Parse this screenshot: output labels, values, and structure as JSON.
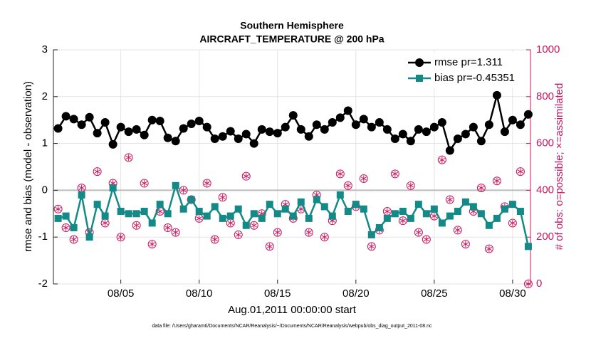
{
  "chart_data": {
    "type": "line",
    "title": "Southern Hemisphere",
    "subtitle": "AIRCRAFT_TEMPERATURE @ 200 hPa",
    "x_label": "Aug.01,2011 00:00:00 start",
    "y_label": "rmse and bias (model - observation)",
    "y2_label": "# of obs: o=possible; ×=assimilated",
    "footnote": "data file: /Users/gharamti/Documents/NCAR/Reanalysis/~/Documents/NCAR/Reanalysis/webpub/obs_diag_output_2011-08.nc",
    "x": [
      0,
      0.5,
      1,
      1.5,
      2,
      2.5,
      3,
      3.5,
      4,
      4.5,
      5,
      5.5,
      6,
      6.5,
      7,
      7.5,
      8,
      8.5,
      9,
      9.5,
      10,
      10.5,
      11,
      11.5,
      12,
      12.5,
      13,
      13.5,
      14,
      14.5,
      15,
      15.5,
      16,
      16.5,
      17,
      17.5,
      18,
      18.5,
      19,
      19.5,
      20,
      20.5,
      21,
      21.5,
      22,
      22.5,
      23,
      23.5,
      24,
      24.5,
      25,
      25.5,
      26,
      26.5,
      27,
      27.5,
      28,
      28.5,
      29,
      29.5,
      30
    ],
    "xlim": [
      -0.3,
      30.14
    ],
    "xticks": [
      {
        "value": 4,
        "label": "08/05"
      },
      {
        "value": 9,
        "label": "08/10"
      },
      {
        "value": 14,
        "label": "08/15"
      },
      {
        "value": 19,
        "label": "08/20"
      },
      {
        "value": 24,
        "label": "08/25"
      },
      {
        "value": 29,
        "label": "08/30"
      }
    ],
    "ylim": [
      -2,
      3
    ],
    "yticks": [
      -2,
      -1,
      0,
      1,
      2,
      3
    ],
    "y2lim": [
      0,
      1000
    ],
    "y2ticks": [
      0,
      200,
      400,
      600,
      800,
      1000
    ],
    "grid": true,
    "legend": "upper right",
    "series": [
      {
        "name": "rmse pr=1.311",
        "color": "#000000",
        "marker": "circle",
        "values": [
          1.32,
          1.58,
          1.52,
          1.4,
          1.56,
          1.22,
          1.45,
          0.98,
          1.35,
          1.25,
          1.3,
          1.18,
          1.5,
          1.48,
          1.12,
          1.05,
          1.32,
          1.42,
          1.48,
          1.35,
          1.1,
          1.15,
          1.26,
          1.1,
          1.2,
          1.0,
          1.3,
          1.25,
          1.22,
          1.35,
          1.6,
          1.3,
          1.15,
          1.4,
          1.3,
          1.45,
          1.55,
          1.7,
          1.4,
          1.52,
          1.35,
          1.45,
          1.3,
          1.1,
          1.2,
          1.05,
          1.3,
          1.25,
          1.35,
          1.45,
          0.85,
          1.1,
          1.2,
          1.35,
          1.05,
          1.4,
          2.03,
          1.25,
          1.5,
          1.4,
          1.62
        ]
      },
      {
        "name": "bias pr=-0.45351",
        "color": "#138a87",
        "marker": "square",
        "values": [
          -0.6,
          -0.55,
          -0.8,
          -0.1,
          -1.0,
          -0.3,
          -0.55,
          0.05,
          -0.45,
          -0.5,
          -0.5,
          -0.45,
          -0.7,
          -0.3,
          -0.5,
          0.1,
          -0.4,
          -0.2,
          -0.45,
          -0.55,
          -0.35,
          -0.6,
          -0.55,
          -0.4,
          -0.75,
          -0.5,
          -0.6,
          -0.3,
          -0.5,
          -0.4,
          -0.55,
          -0.25,
          -0.6,
          -0.2,
          -0.35,
          -0.55,
          -0.1,
          -0.45,
          -0.3,
          -0.4,
          -0.95,
          -0.8,
          -0.6,
          -0.5,
          -0.45,
          -0.6,
          -0.3,
          -0.5,
          -0.4,
          -0.7,
          -0.55,
          -0.45,
          -0.25,
          -0.35,
          -0.5,
          -0.75,
          -0.6,
          -0.4,
          -0.3,
          -0.45,
          -1.2
        ]
      }
    ],
    "obs_color": "#c8175e",
    "obs_possible": [
      320,
      240,
      190,
      410,
      220,
      480,
      260,
      430,
      200,
      540,
      250,
      430,
      170,
      310,
      240,
      220,
      400,
      360,
      280,
      430,
      190,
      370,
      260,
      210,
      460,
      250,
      300,
      160,
      220,
      340,
      280,
      320,
      220,
      380,
      200,
      270,
      470,
      420,
      330,
      450,
      160,
      230,
      310,
      470,
      270,
      420,
      220,
      190,
      290,
      530,
      360,
      230,
      170,
      310,
      410,
      150,
      440,
      330,
      260,
      480,
      0
    ],
    "obs_assimilated": [
      320,
      240,
      190,
      410,
      220,
      480,
      260,
      430,
      200,
      540,
      250,
      430,
      170,
      310,
      240,
      220,
      400,
      360,
      280,
      430,
      190,
      370,
      260,
      210,
      460,
      250,
      300,
      160,
      220,
      340,
      280,
      320,
      220,
      380,
      200,
      270,
      470,
      420,
      330,
      450,
      160,
      230,
      310,
      470,
      270,
      420,
      220,
      190,
      290,
      530,
      360,
      230,
      170,
      310,
      410,
      150,
      440,
      330,
      260,
      480,
      0
    ]
  }
}
